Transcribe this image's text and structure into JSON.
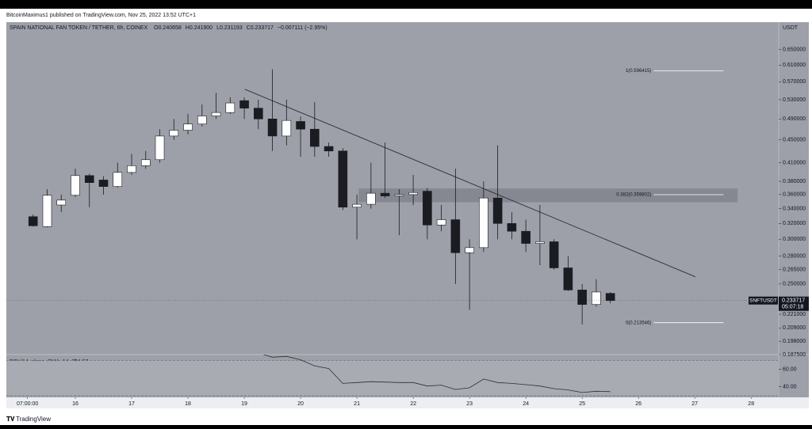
{
  "header": {
    "publisher": "BitcoinMaximus1 published on TradingView.com, Nov 25, 2022 13:52 UTC+1",
    "brand": "TradingView"
  },
  "chart_data": {
    "type": "candlestick",
    "symbol_title": "SPAIN NATIONAL FAN TOKEN / TETHER, 6h, COINEX",
    "ohlc_legend": [
      "O0.240658",
      "H0.241900",
      "L0.231193",
      "C0.233717",
      "−0.007111 (−2.95%)"
    ],
    "currency": "USDT",
    "up_color": "#ffffff",
    "down_color": "#1a1c22",
    "x": [
      15.25,
      15.5,
      15.75,
      16,
      16.25,
      16.5,
      16.75,
      17,
      17.25,
      17.5,
      17.75,
      18,
      18.25,
      18.5,
      18.75,
      19,
      19.25,
      19.5,
      19.75,
      20,
      20.25,
      20.5,
      20.75,
      21,
      21.25,
      21.5,
      21.75,
      22,
      22.25,
      22.5,
      22.75,
      23,
      23.25,
      23.5,
      23.75,
      24,
      24.25,
      24.5,
      24.75,
      25,
      25.25,
      25.5
    ],
    "open": [
      0.329,
      0.316,
      0.345,
      0.359,
      0.389,
      0.382,
      0.372,
      0.394,
      0.405,
      0.415,
      0.457,
      0.468,
      0.48,
      0.496,
      0.503,
      0.528,
      0.512,
      0.49,
      0.457,
      0.485,
      0.47,
      0.438,
      0.43,
      0.342,
      0.346,
      0.362,
      0.358,
      0.36,
      0.365,
      0.318,
      0.325,
      0.284,
      0.29,
      0.355,
      0.32,
      0.31,
      0.295,
      0.297,
      0.267,
      0.244,
      0.23,
      0.240658
    ],
    "high": [
      0.332,
      0.368,
      0.36,
      0.4,
      0.392,
      0.388,
      0.41,
      0.425,
      0.43,
      0.47,
      0.49,
      0.5,
      0.52,
      0.545,
      0.535,
      0.535,
      0.53,
      0.6,
      0.53,
      0.495,
      0.525,
      0.445,
      0.435,
      0.36,
      0.41,
      0.445,
      0.368,
      0.39,
      0.37,
      0.345,
      0.4,
      0.3,
      0.38,
      0.44,
      0.335,
      0.325,
      0.345,
      0.3,
      0.28,
      0.25,
      0.255,
      0.2419
    ],
    "low": [
      0.316,
      0.315,
      0.335,
      0.356,
      0.342,
      0.36,
      0.37,
      0.39,
      0.4,
      0.41,
      0.45,
      0.46,
      0.475,
      0.49,
      0.5,
      0.49,
      0.47,
      0.43,
      0.44,
      0.42,
      0.42,
      0.42,
      0.338,
      0.3,
      0.34,
      0.355,
      0.305,
      0.345,
      0.3,
      0.31,
      0.25,
      0.225,
      0.285,
      0.3,
      0.3,
      0.285,
      0.27,
      0.265,
      0.243,
      0.212,
      0.228,
      0.231193
    ],
    "close": [
      0.317,
      0.359,
      0.352,
      0.389,
      0.378,
      0.372,
      0.394,
      0.405,
      0.415,
      0.457,
      0.468,
      0.48,
      0.496,
      0.503,
      0.523,
      0.512,
      0.49,
      0.457,
      0.487,
      0.47,
      0.438,
      0.43,
      0.342,
      0.346,
      0.362,
      0.358,
      0.36,
      0.363,
      0.318,
      0.325,
      0.284,
      0.29,
      0.355,
      0.32,
      0.31,
      0.295,
      0.297,
      0.267,
      0.244,
      0.23,
      0.242,
      0.233717
    ],
    "xlim": [
      14.775,
      28.49
    ],
    "xticks": [
      {
        "value": 15.15,
        "label": "07:00:00"
      },
      16,
      17,
      18,
      19,
      20,
      21,
      22,
      23,
      24,
      25,
      26,
      27,
      28
    ],
    "ylim": [
      0.1875,
      0.727
    ],
    "log_scale": true,
    "yticks": [
      {
        "value": 0.65,
        "label": "0.650000"
      },
      {
        "value": 0.61,
        "label": "0.610000"
      },
      {
        "value": 0.57,
        "label": "0.570000"
      },
      {
        "value": 0.53,
        "label": "0.530000"
      },
      {
        "value": 0.49,
        "label": "0.490000"
      },
      {
        "value": 0.45,
        "label": "0.450000"
      },
      {
        "value": 0.41,
        "label": "0.410000"
      },
      {
        "value": 0.38,
        "label": "0.380000"
      },
      {
        "value": 0.36,
        "label": "0.360000"
      },
      {
        "value": 0.34,
        "label": "0.340000"
      },
      {
        "value": 0.32,
        "label": "0.320000"
      },
      {
        "value": 0.3,
        "label": "0.300000"
      },
      {
        "value": 0.28,
        "label": "0.280000"
      },
      {
        "value": 0.265,
        "label": "0.265000"
      },
      {
        "value": 0.25,
        "label": "0.250000"
      },
      {
        "value": 0.221,
        "label": "0.221000"
      },
      {
        "value": 0.209,
        "label": "0.209000"
      },
      {
        "value": 0.198,
        "label": "0.198000"
      },
      {
        "value": 0.1875,
        "label": "0.187500"
      }
    ],
    "trendline": {
      "x": [
        19.01,
        27.01
      ],
      "values": [
        0.553,
        0.2575
      ],
      "color": "#2a2e39"
    },
    "fib_x": [
      26.27,
      27.51
    ],
    "fib_levels": [
      {
        "label": "1(0.596415)",
        "value": 0.596415
      },
      {
        "label": "0.382(0.359802)",
        "value": 0.359802
      },
      {
        "label": "0(0.213546)",
        "value": 0.213546
      }
    ],
    "fib_zone": {
      "x": [
        21.03,
        27.76
      ],
      "values": [
        0.349,
        0.369
      ],
      "color": "#7f828b"
    },
    "last_price": {
      "symbol": "SNFTUSDT",
      "value": 0.233717,
      "countdown": "05:07:18"
    },
    "rsi": {
      "legend": "RSI (14, close, SMA, 14, 2)",
      "value_label": 34.57,
      "color": "#2a2e39",
      "ylim": [
        28,
        77
      ],
      "band": [
        30,
        70
      ],
      "yticks": [
        {
          "value": 60,
          "label": "60.00"
        },
        {
          "value": 40,
          "label": "40.00"
        }
      ],
      "values": [
        null,
        null,
        null,
        null,
        null,
        null,
        null,
        null,
        null,
        null,
        null,
        null,
        null,
        null,
        null,
        null,
        79,
        74,
        75,
        71,
        64,
        61,
        44,
        45,
        46,
        45.5,
        45,
        45,
        41,
        42,
        37,
        39,
        49,
        45,
        44,
        42.5,
        41,
        38,
        36.5,
        33.5,
        35,
        34.57
      ]
    }
  }
}
